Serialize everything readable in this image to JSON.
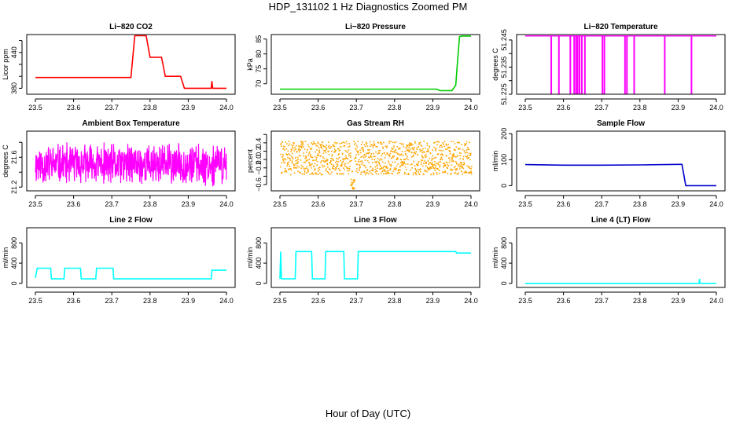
{
  "figure": {
    "title": "HDP_131102  1 Hz Diagnostics Zoomed PM",
    "xlabel": "Hour of Day (UTC)"
  },
  "chart_data": [
    {
      "type": "line",
      "title": "Li−820 CO2",
      "xlabel": "",
      "ylabel": "Licor ppm",
      "color": "#ff0000",
      "xlim": [
        23.5,
        24.0
      ],
      "ylim": [
        370,
        470
      ],
      "xticks": [
        "23.5",
        "23.6",
        "23.7",
        "23.8",
        "23.9",
        "24.0"
      ],
      "yticks": [
        380,
        400,
        420,
        440,
        460
      ],
      "ytick_labels": [
        "380",
        "",
        "",
        "440",
        ""
      ],
      "x": [
        23.5,
        23.75,
        23.76,
        23.79,
        23.8,
        23.83,
        23.84,
        23.88,
        23.89,
        23.96,
        23.962,
        23.964,
        24.0
      ],
      "y": [
        398,
        398,
        468,
        468,
        432,
        432,
        400,
        400,
        380,
        380,
        392,
        380,
        380
      ]
    },
    {
      "type": "line",
      "title": "Li−820 Pressure",
      "xlabel": "",
      "ylabel": "kPa",
      "color": "#00cc00",
      "xlim": [
        23.5,
        24.0
      ],
      "ylim": [
        66.5,
        86.5
      ],
      "xticks": [
        "23.5",
        "23.6",
        "23.7",
        "23.8",
        "23.9",
        "24.0"
      ],
      "yticks": [
        70,
        75,
        80,
        85
      ],
      "ytick_labels": [
        "70",
        "75",
        "80",
        "85"
      ],
      "x": [
        23.5,
        23.91,
        23.92,
        23.95,
        23.96,
        23.965,
        23.97,
        23.975,
        24.0
      ],
      "y": [
        68.2,
        68.2,
        67.7,
        67.7,
        69.5,
        78.0,
        85.8,
        86.0,
        86.0
      ]
    },
    {
      "type": "line",
      "title": "Li−820 Temperature",
      "xlabel": "",
      "ylabel": "degrees C",
      "color": "#ff00ff",
      "xlim": [
        23.5,
        24.0
      ],
      "ylim": [
        51.225,
        51.247
      ],
      "xticks": [
        "23.5",
        "23.6",
        "23.7",
        "23.8",
        "23.9",
        "24.0"
      ],
      "yticks": [
        51.225,
        51.23,
        51.235,
        51.24,
        51.245
      ],
      "ytick_labels": [
        "51.225",
        "",
        "51.235",
        "",
        "51.245"
      ],
      "baseline": 51.2465,
      "dropout_value": 51.225,
      "dropouts": [
        23.568,
        23.588,
        23.618,
        23.628,
        23.633,
        23.637,
        23.642,
        23.648,
        23.656,
        23.702,
        23.707,
        23.761,
        23.766,
        23.785,
        23.865,
        23.935
      ]
    },
    {
      "type": "line",
      "title": "Ambient Box Temperature",
      "xlabel": "",
      "ylabel": "degrees C",
      "color": "#ff00ff",
      "xlim": [
        23.5,
        24.0
      ],
      "ylim": [
        21.15,
        21.95
      ],
      "xticks": [
        "23.5",
        "23.6",
        "23.7",
        "23.8",
        "23.9",
        "24.0"
      ],
      "yticks": [
        21.2,
        21.4,
        21.6,
        21.8
      ],
      "ytick_labels": [
        "21.2",
        "",
        "21.6",
        ""
      ],
      "noise": {
        "center": 21.47,
        "low": 21.2,
        "high": 21.81,
        "count": 700,
        "seed": 11
      }
    },
    {
      "type": "scatter",
      "title": "Gas Stream RH",
      "xlabel": "",
      "ylabel": "percent",
      "color": "#ffa500",
      "xlim": [
        23.5,
        24.0
      ],
      "ylim": [
        -0.75,
        0.68
      ],
      "xticks": [
        "23.5",
        "23.6",
        "23.7",
        "23.8",
        "23.9",
        "24.0"
      ],
      "yticks": [
        -0.6,
        -0.4,
        -0.2,
        0.0,
        0.2,
        0.4,
        0.6
      ],
      "ytick_labels": [
        "−0.6",
        "",
        "−0.2",
        "0.0",
        "0.2",
        "0.4",
        ""
      ],
      "noise": {
        "center": 0.0,
        "low": -0.35,
        "high": 0.45,
        "count": 1100,
        "seed": 7,
        "spike_x": 23.69,
        "spike_low": -0.7
      }
    },
    {
      "type": "line",
      "title": "Sample Flow",
      "xlabel": "",
      "ylabel": "ml/min",
      "color": "#0000cc",
      "xlim": [
        23.5,
        24.0
      ],
      "ylim": [
        -20,
        210
      ],
      "xticks": [
        "23.5",
        "23.6",
        "23.7",
        "23.8",
        "23.9",
        "24.0"
      ],
      "yticks": [
        0,
        100,
        200
      ],
      "ytick_labels": [
        "0",
        "100",
        "200"
      ],
      "x": [
        23.5,
        23.6,
        23.7,
        23.8,
        23.9,
        23.91,
        23.92,
        24.0
      ],
      "y": [
        81,
        79,
        79,
        80,
        82,
        82,
        0,
        0
      ]
    },
    {
      "type": "line",
      "title": "Line 2 Flow",
      "xlabel": "",
      "ylabel": "ml/min",
      "color": "#00ffff",
      "xlim": [
        23.5,
        24.0
      ],
      "ylim": [
        -80,
        1100
      ],
      "xticks": [
        "23.5",
        "23.6",
        "23.7",
        "23.8",
        "23.9",
        "24.0"
      ],
      "yticks": [
        0,
        400,
        800
      ],
      "ytick_labels": [
        "0",
        "400",
        "800"
      ],
      "x": [
        23.5,
        23.505,
        23.54,
        23.542,
        23.575,
        23.577,
        23.618,
        23.62,
        23.658,
        23.66,
        23.703,
        23.705,
        23.96,
        23.962,
        24.0
      ],
      "y": [
        110,
        300,
        300,
        90,
        90,
        300,
        300,
        90,
        90,
        300,
        300,
        90,
        90,
        260,
        260
      ]
    },
    {
      "type": "line",
      "title": "Line 3 Flow",
      "xlabel": "",
      "ylabel": "ml/min",
      "color": "#00ffff",
      "xlim": [
        23.5,
        24.0
      ],
      "ylim": [
        -80,
        1100
      ],
      "xticks": [
        "23.5",
        "23.6",
        "23.7",
        "23.8",
        "23.9",
        "24.0"
      ],
      "yticks": [
        0,
        400,
        800
      ],
      "ytick_labels": [
        "0",
        "400",
        "800"
      ],
      "x": [
        23.5,
        23.502,
        23.504,
        23.54,
        23.542,
        23.583,
        23.585,
        23.618,
        23.62,
        23.667,
        23.669,
        23.703,
        23.705,
        23.96,
        23.962,
        24.0
      ],
      "y": [
        90,
        630,
        90,
        90,
        630,
        630,
        90,
        90,
        630,
        630,
        90,
        90,
        630,
        630,
        600,
        600
      ]
    },
    {
      "type": "line",
      "title": "Line 4 (LT) Flow",
      "xlabel": "",
      "ylabel": "ml/min",
      "color": "#00ffff",
      "xlim": [
        23.5,
        24.0
      ],
      "ylim": [
        -80,
        1100
      ],
      "xticks": [
        "23.5",
        "23.6",
        "23.7",
        "23.8",
        "23.9",
        "24.0"
      ],
      "yticks": [
        0,
        400,
        800
      ],
      "ytick_labels": [
        "0",
        "400",
        "800"
      ],
      "x": [
        23.5,
        23.955,
        23.956,
        23.957,
        23.958,
        24.0
      ],
      "y": [
        0,
        0,
        90,
        0,
        0,
        0
      ]
    }
  ]
}
